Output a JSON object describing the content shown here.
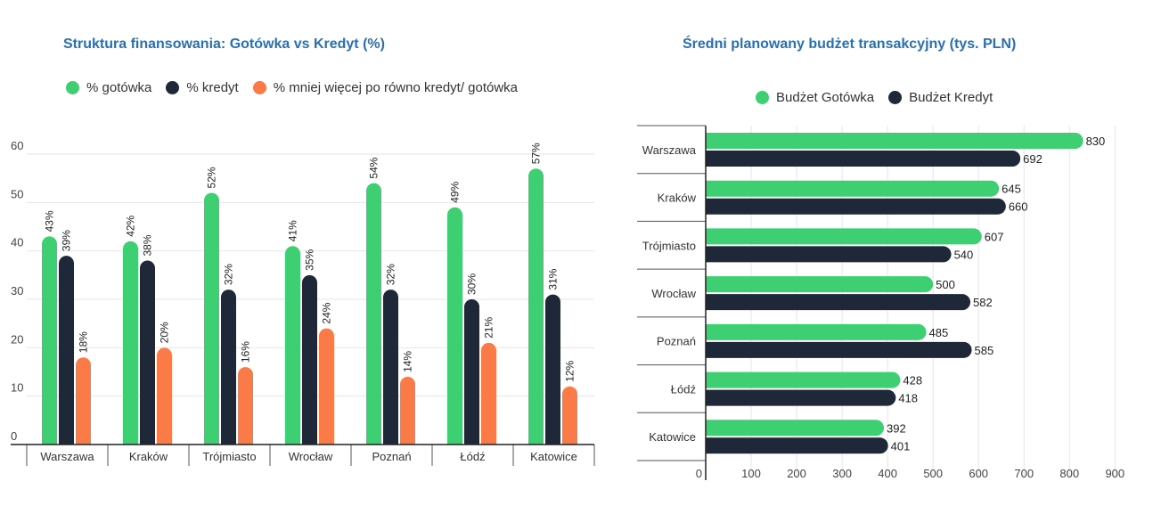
{
  "colors": {
    "cash": "#3ecf72",
    "credit": "#1e2838",
    "mixed": "#fa7b47",
    "grid": "#e6e6e6",
    "axis": "#222222",
    "title": "#2a6fb0"
  },
  "chart_data": [
    {
      "type": "bar",
      "title": "Struktura finansowania: Gotówka vs Kredyt (%)",
      "xlabel": "",
      "ylabel": "",
      "ylim": [
        0,
        60
      ],
      "yticks": [
        "0",
        "10",
        "20",
        "30",
        "40",
        "50",
        "60"
      ],
      "grid": true,
      "legend_position": "top",
      "categories": [
        "Warszawa",
        "Kraków",
        "Trójmiasto",
        "Wrocław",
        "Poznań",
        "Łódź",
        "Katowice"
      ],
      "series": [
        {
          "name": "% gotówka",
          "values": [
            43,
            42,
            52,
            41,
            54,
            49,
            57
          ],
          "labels": [
            "43%",
            "42%",
            "52%",
            "41%",
            "54%",
            "49%",
            "57%"
          ]
        },
        {
          "name": "% kredyt",
          "values": [
            39,
            38,
            32,
            35,
            32,
            30,
            31
          ],
          "labels": [
            "39%",
            "38%",
            "32%",
            "35%",
            "32%",
            "30%",
            "31%"
          ]
        },
        {
          "name": "% mniej więcej po równo kredyt/ gotówka",
          "values": [
            18,
            20,
            16,
            24,
            14,
            21,
            12
          ],
          "labels": [
            "18%",
            "20%",
            "16%",
            "24%",
            "14%",
            "21%",
            "12%"
          ]
        }
      ]
    },
    {
      "type": "bar",
      "orientation": "horizontal",
      "title": "Średni planowany budżet transakcyjny (tys. PLN)",
      "xlabel": "",
      "ylabel": "",
      "xlim": [
        0,
        900
      ],
      "xticks": [
        "0",
        "100",
        "200",
        "300",
        "400",
        "500",
        "600",
        "700",
        "800",
        "900"
      ],
      "grid": true,
      "legend_position": "top",
      "categories": [
        "Warszawa",
        "Kraków",
        "Trójmiasto",
        "Wrocław",
        "Poznań",
        "Łódź",
        "Katowice"
      ],
      "series": [
        {
          "name": "Budżet Gotówka",
          "values": [
            830,
            645,
            607,
            500,
            485,
            428,
            392
          ],
          "labels": [
            "830",
            "645",
            "607",
            "500",
            "485",
            "428",
            "392"
          ]
        },
        {
          "name": "Budżet Kredyt",
          "values": [
            692,
            660,
            540,
            582,
            585,
            418,
            401
          ],
          "labels": [
            "692",
            "660",
            "540",
            "582",
            "585",
            "418",
            "401"
          ]
        }
      ]
    }
  ]
}
